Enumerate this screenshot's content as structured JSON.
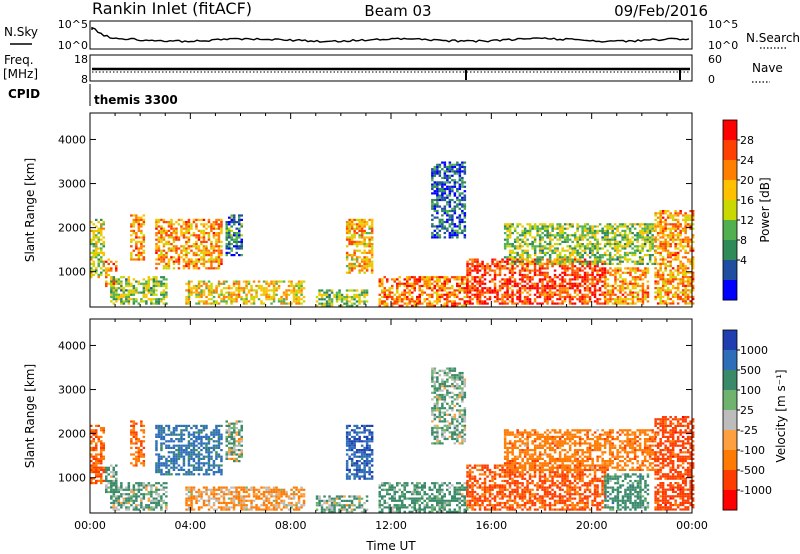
{
  "header": {
    "station": "Rankin Inlet (fitACF)",
    "beam": "Beam 03",
    "date": "09/Feb/2016"
  },
  "top_panels": {
    "nsky_label": "N.Sky",
    "nsearch_label": "N.Search",
    "noise_ticks": [
      "10^5",
      "10^0"
    ],
    "freq_label": "Freq.",
    "freq_unit": "[MHz]",
    "freq_ticks": [
      "18",
      "8"
    ],
    "nave_label": "Nave",
    "nave_ticks": [
      "60",
      "0"
    ],
    "cpid_label": "CPID",
    "cpid_value": "themis 3300"
  },
  "colorbars": {
    "power": {
      "label": "Power [dB]",
      "ticks": [
        "28",
        "24",
        "20",
        "16",
        "12",
        "8",
        "4"
      ],
      "colors": [
        "#ff0000",
        "#ff4000",
        "#ff8000",
        "#ffc000",
        "#c8d800",
        "#50b050",
        "#2e8b57",
        "#1f4ea0",
        "#0000ff"
      ]
    },
    "velocity": {
      "label": "Velocity [m s⁻¹]",
      "ticks": [
        "1000",
        "500",
        "100",
        "25",
        "-25",
        "-100",
        "-500",
        "-1000"
      ],
      "colors": [
        "#1f3fb0",
        "#2d6eb8",
        "#3a8a6a",
        "#6fb36f",
        "#bcbcbc",
        "#ffa040",
        "#ff7a00",
        "#ff3c00",
        "#ff0000"
      ]
    }
  },
  "chart_data": [
    {
      "type": "heatmap",
      "quantity": "power",
      "title": "",
      "xlabel": "",
      "ylabel": "Slant Range [km]",
      "xlim": [
        "00:00",
        "24:00"
      ],
      "ylim": [
        200,
        4600
      ],
      "x_ticks": [
        "00:00",
        "04:00",
        "08:00",
        "12:00",
        "16:00",
        "20:00",
        "00:00"
      ],
      "y_ticks": [
        "1000",
        "2000",
        "3000",
        "4000"
      ],
      "clim": [
        0,
        32
      ],
      "echo_regions": [
        {
          "t0": 0.0,
          "t1": 0.5,
          "r0": 900,
          "r1": 2200,
          "value": 16
        },
        {
          "t0": 0.6,
          "t1": 1.0,
          "r0": 700,
          "r1": 1300,
          "value": 24
        },
        {
          "t0": 0.8,
          "t1": 3.0,
          "r0": 300,
          "r1": 900,
          "value": 14
        },
        {
          "t0": 1.6,
          "t1": 2.1,
          "r0": 1300,
          "r1": 2300,
          "value": 22
        },
        {
          "t0": 2.6,
          "t1": 5.2,
          "r0": 1100,
          "r1": 2200,
          "value": 22
        },
        {
          "t0": 3.8,
          "t1": 8.5,
          "r0": 300,
          "r1": 800,
          "value": 18
        },
        {
          "t0": 5.4,
          "t1": 6.0,
          "r0": 1400,
          "r1": 2300,
          "value": 8
        },
        {
          "t0": 9.0,
          "t1": 11.0,
          "r0": 250,
          "r1": 600,
          "value": 14
        },
        {
          "t0": 10.2,
          "t1": 11.2,
          "r0": 1000,
          "r1": 2200,
          "value": 20
        },
        {
          "t0": 11.5,
          "t1": 15.0,
          "r0": 250,
          "r1": 900,
          "value": 24
        },
        {
          "t0": 13.6,
          "t1": 14.9,
          "r0": 1800,
          "r1": 3500,
          "value": 6
        },
        {
          "t0": 15.0,
          "t1": 20.5,
          "r0": 300,
          "r1": 1300,
          "value": 28
        },
        {
          "t0": 16.5,
          "t1": 22.5,
          "r0": 1200,
          "r1": 2100,
          "value": 14
        },
        {
          "t0": 20.5,
          "t1": 22.2,
          "r0": 300,
          "r1": 1100,
          "value": 22
        },
        {
          "t0": 22.5,
          "t1": 24.0,
          "r0": 300,
          "r1": 2400,
          "value": 22
        }
      ]
    },
    {
      "type": "heatmap",
      "quantity": "velocity",
      "title": "",
      "xlabel": "Time UT",
      "ylabel": "Slant Range [km]",
      "xlim": [
        "00:00",
        "24:00"
      ],
      "ylim": [
        200,
        4600
      ],
      "x_ticks": [
        "00:00",
        "04:00",
        "08:00",
        "12:00",
        "16:00",
        "20:00",
        "00:00"
      ],
      "y_ticks": [
        "1000",
        "2000",
        "3000",
        "4000"
      ],
      "echo_regions": [
        {
          "t0": 0.0,
          "t1": 0.5,
          "r0": 900,
          "r1": 2200,
          "value": -300
        },
        {
          "t0": 0.6,
          "t1": 1.0,
          "r0": 700,
          "r1": 1300,
          "value": 80
        },
        {
          "t0": 0.8,
          "t1": 3.0,
          "r0": 300,
          "r1": 900,
          "value": 60
        },
        {
          "t0": 1.6,
          "t1": 2.1,
          "r0": 1300,
          "r1": 2300,
          "value": -300
        },
        {
          "t0": 2.6,
          "t1": 5.2,
          "r0": 1100,
          "r1": 2200,
          "value": 400
        },
        {
          "t0": 3.8,
          "t1": 8.5,
          "r0": 300,
          "r1": 800,
          "value": -80
        },
        {
          "t0": 5.4,
          "t1": 6.0,
          "r0": 1400,
          "r1": 2300,
          "value": 40
        },
        {
          "t0": 9.0,
          "t1": 11.0,
          "r0": 250,
          "r1": 600,
          "value": 60
        },
        {
          "t0": 10.2,
          "t1": 11.2,
          "r0": 1000,
          "r1": 2200,
          "value": 700
        },
        {
          "t0": 11.5,
          "t1": 15.0,
          "r0": 250,
          "r1": 900,
          "value": 120
        },
        {
          "t0": 13.6,
          "t1": 14.9,
          "r0": 1800,
          "r1": 3500,
          "value": 60
        },
        {
          "t0": 15.0,
          "t1": 20.5,
          "r0": 300,
          "r1": 1300,
          "value": -350
        },
        {
          "t0": 16.5,
          "t1": 22.5,
          "r0": 1200,
          "r1": 2100,
          "value": -200
        },
        {
          "t0": 20.5,
          "t1": 22.2,
          "r0": 300,
          "r1": 1100,
          "value": 150
        },
        {
          "t0": 22.5,
          "t1": 24.0,
          "r0": 300,
          "r1": 2400,
          "value": -500
        }
      ]
    }
  ]
}
